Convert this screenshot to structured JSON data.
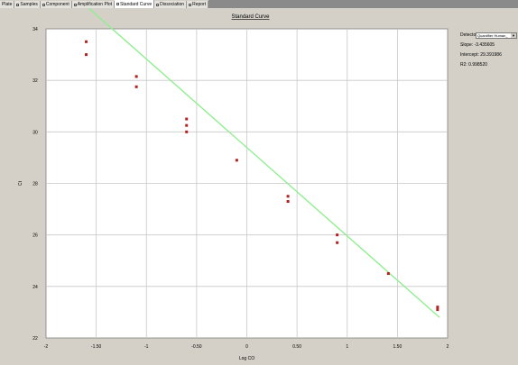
{
  "tabs": [
    {
      "label": "Plate"
    },
    {
      "label": "Samples"
    },
    {
      "label": "Component"
    },
    {
      "label": "Amplification Plot"
    },
    {
      "label": "Standard Curve",
      "active": true
    },
    {
      "label": "Dissociation"
    },
    {
      "label": "Report"
    }
  ],
  "side_panel": {
    "detector_label": "Detector:",
    "detector_value": "Quantifier Human_",
    "slope": "Slope: -3.435605",
    "intercept": "Intercept: 29.391986",
    "r2": "R2: 0.998520"
  },
  "colors": {
    "point": "#b22222",
    "fit_line": "#90ee90",
    "background": "#d4d0c8",
    "plot_area": "#ffffff"
  },
  "chart_data": {
    "type": "scatter",
    "title": "Standard Curve",
    "xlabel": "Log CO",
    "ylabel": "Ct",
    "xlim": [
      -2,
      2
    ],
    "ylim": [
      22,
      34
    ],
    "x_ticks": [
      "-2",
      "-1.50",
      "-1",
      "-0.50",
      "0",
      "0.50",
      "1",
      "1.50",
      "2"
    ],
    "y_ticks": [
      "34",
      "32",
      "30",
      "28",
      "26",
      "24",
      "22"
    ],
    "grid": true,
    "points": [
      {
        "x": -1.6,
        "y": 33.5
      },
      {
        "x": -1.6,
        "y": 33.0
      },
      {
        "x": -1.1,
        "y": 32.15
      },
      {
        "x": -1.1,
        "y": 31.75
      },
      {
        "x": -0.6,
        "y": 30.5
      },
      {
        "x": -0.6,
        "y": 30.25
      },
      {
        "x": -0.6,
        "y": 30.0
      },
      {
        "x": -0.1,
        "y": 28.9
      },
      {
        "x": 0.41,
        "y": 27.5
      },
      {
        "x": 0.41,
        "y": 27.3
      },
      {
        "x": 0.9,
        "y": 26.0
      },
      {
        "x": 0.9,
        "y": 25.7
      },
      {
        "x": 1.41,
        "y": 24.5
      },
      {
        "x": 1.9,
        "y": 23.2
      },
      {
        "x": 1.9,
        "y": 23.1
      }
    ],
    "fit": {
      "slope": -3.435605,
      "intercept": 29.391986,
      "x_range": [
        -1.62,
        1.92
      ]
    }
  }
}
